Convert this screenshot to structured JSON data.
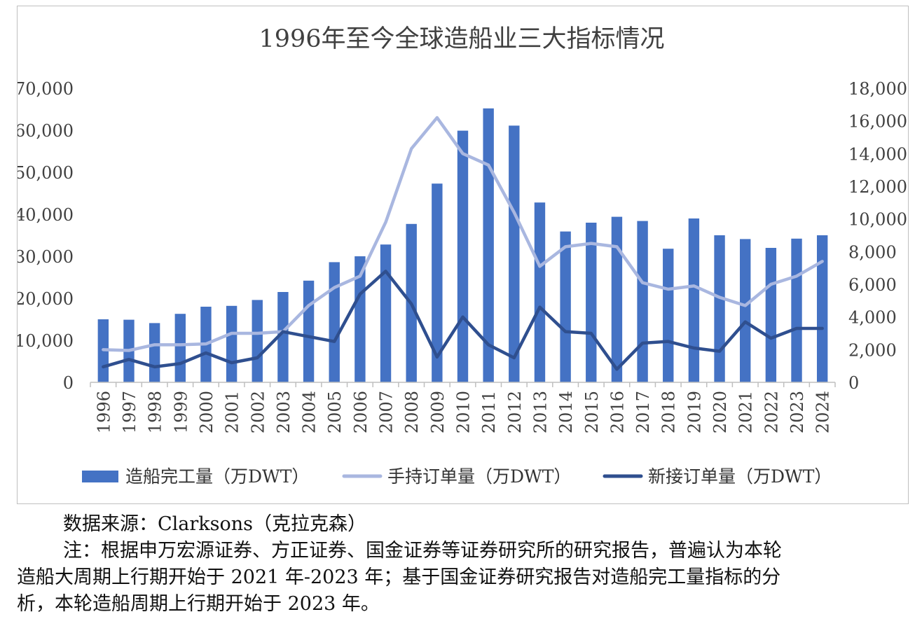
{
  "chart_data": {
    "type": "bar+line",
    "title": "1996年至今全球造船业三大指标情况",
    "categories": [
      "1996",
      "1997",
      "1998",
      "1999",
      "2000",
      "2001",
      "2002",
      "2003",
      "2004",
      "2005",
      "2006",
      "2007",
      "2008",
      "2009",
      "2010",
      "2011",
      "2012",
      "2013",
      "2014",
      "2015",
      "2016",
      "2017",
      "2018",
      "2019",
      "2020",
      "2021",
      "2022",
      "2023",
      "2024"
    ],
    "left_axis": {
      "min": 0,
      "max": 70000,
      "step": 10000,
      "tick_labels": [
        "0",
        "10,000",
        "20,000",
        "30,000",
        "40,000",
        "50,000",
        "60,000",
        "70,000"
      ]
    },
    "right_axis": {
      "min": 0,
      "max": 18000,
      "step": 2000,
      "tick_labels": [
        "0",
        "2,000",
        "4,000",
        "6,000",
        "8,000",
        "10,000",
        "12,000",
        "14,000",
        "16,000",
        "18,000"
      ]
    },
    "series": [
      {
        "name": "造船完工量（万DWT）",
        "type": "bar",
        "axis": "left",
        "color": "#4472C4",
        "values": [
          15000,
          14900,
          14100,
          16300,
          18000,
          18200,
          19600,
          21500,
          24200,
          28600,
          30000,
          32800,
          37700,
          47300,
          59900,
          65200,
          61100,
          42800,
          35900,
          38000,
          39400,
          38400,
          31800,
          39000,
          35000,
          34100,
          32000,
          34200,
          35000
        ]
      },
      {
        "name": "手持订单量（万DWT）",
        "type": "line",
        "axis": "right",
        "color": "#A9B7E0",
        "values": [
          2000,
          1950,
          2300,
          2300,
          2350,
          3000,
          3000,
          3100,
          4700,
          5800,
          6500,
          9800,
          14300,
          16200,
          14000,
          13300,
          10400,
          7100,
          8300,
          8500,
          8300,
          6100,
          5700,
          5900,
          5200,
          4700,
          6000,
          6500,
          7400
        ]
      },
      {
        "name": "新接订单量（万DWT）",
        "type": "line",
        "axis": "right",
        "color": "#2F4F8F",
        "values": [
          950,
          1400,
          950,
          1150,
          1800,
          1200,
          1500,
          3100,
          2800,
          2500,
          5400,
          6800,
          4800,
          1550,
          4000,
          2300,
          1500,
          4600,
          3100,
          3000,
          800,
          2400,
          2500,
          2100,
          1900,
          3700,
          2700,
          3300,
          3300
        ]
      }
    ],
    "legend_position": "bottom",
    "grid": false
  },
  "footnotes": {
    "source": "数据来源：Clarksons（克拉克森）",
    "note_line1": "注：根据申万宏源证券、方正证券、国金证券等证券研究所的研究报告，普遍认为本轮",
    "note_line2": "造船大周期上行期开始于 2021 年-2023 年；基于国金证券研究报告对造船完工量指标的分",
    "note_line3": "析，本轮造船周期上行期开始于 2023 年。"
  }
}
